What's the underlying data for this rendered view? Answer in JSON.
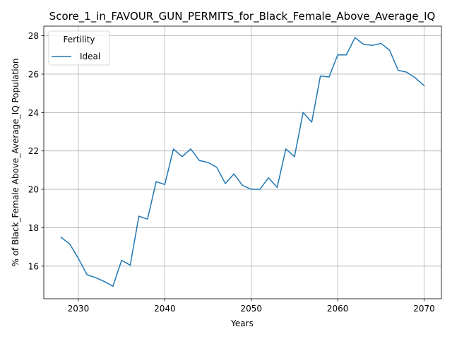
{
  "chart_data": {
    "type": "line",
    "title": "Score_1_in_FAVOUR_GUN_PERMITS_for_Black_Female_Above_Average_IQ",
    "xlabel": "Years",
    "ylabel": "% of Black_Female Above_Average_IQ Population",
    "xlim": [
      2026,
      2072
    ],
    "ylim": [
      14.3,
      28.5
    ],
    "x_ticks": [
      2030,
      2040,
      2050,
      2060,
      2070
    ],
    "y_ticks": [
      16,
      18,
      20,
      22,
      24,
      26,
      28
    ],
    "grid": true,
    "legend": {
      "title": "Fertility",
      "placement": "top-left"
    },
    "series": [
      {
        "name": "Ideal",
        "color": "#1f77b4",
        "x": [
          2028,
          2029,
          2030,
          2031,
          2032,
          2033,
          2034,
          2035,
          2036,
          2037,
          2038,
          2039,
          2040,
          2041,
          2042,
          2043,
          2044,
          2045,
          2046,
          2047,
          2048,
          2049,
          2050,
          2051,
          2052,
          2053,
          2054,
          2055,
          2056,
          2057,
          2058,
          2059,
          2060,
          2061,
          2062,
          2063,
          2064,
          2065,
          2066,
          2067,
          2068,
          2069,
          2070
        ],
        "y": [
          17.5,
          17.15,
          16.4,
          15.55,
          15.4,
          15.2,
          14.95,
          16.3,
          16.05,
          18.6,
          18.45,
          20.4,
          20.25,
          22.1,
          21.7,
          22.1,
          21.5,
          21.4,
          21.15,
          20.3,
          20.8,
          20.2,
          20.0,
          20.0,
          20.6,
          20.1,
          22.1,
          21.7,
          24.0,
          23.5,
          25.9,
          25.85,
          27.0,
          27.0,
          27.9,
          27.55,
          27.5,
          27.6,
          27.25,
          26.2,
          26.1,
          25.8,
          25.4
        ]
      }
    ]
  }
}
